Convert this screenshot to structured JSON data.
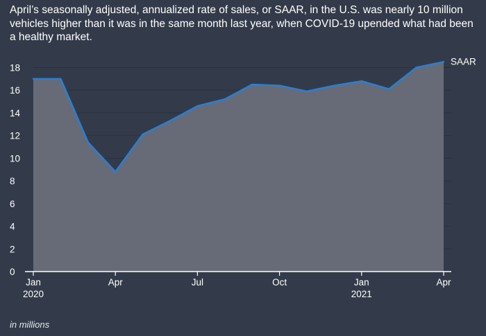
{
  "description": "April’s seasonally adjusted, annualized rate of sales, or SAAR, in the U.S. was nearly 10 million vehicles higher than it was in the same month last year, when COVID-19 upended what had been a healthy market.",
  "footnote": "in millions",
  "chart_data": {
    "type": "area",
    "title": "",
    "xlabel": "",
    "ylabel": "",
    "x": [
      "2020-01",
      "2020-02",
      "2020-03",
      "2020-04",
      "2020-05",
      "2020-06",
      "2020-07",
      "2020-08",
      "2020-09",
      "2020-10",
      "2020-11",
      "2020-12",
      "2021-01",
      "2021-02",
      "2021-03",
      "2021-04"
    ],
    "series": [
      {
        "name": "SAAR",
        "values": [
          17.0,
          17.0,
          11.4,
          8.8,
          12.1,
          13.3,
          14.6,
          15.2,
          16.5,
          16.4,
          15.9,
          16.4,
          16.8,
          16.1,
          18.0,
          18.5
        ]
      }
    ],
    "ylim": [
      0,
      18.7
    ],
    "yticks": [
      0,
      2,
      4,
      6,
      8,
      10,
      12,
      14,
      16,
      18
    ],
    "xticks": [
      {
        "index": 0,
        "label": "Jan",
        "sublabel": "2020"
      },
      {
        "index": 3,
        "label": "Apr",
        "sublabel": ""
      },
      {
        "index": 6,
        "label": "Jul",
        "sublabel": ""
      },
      {
        "index": 9,
        "label": "Oct",
        "sublabel": ""
      },
      {
        "index": 12,
        "label": "Jan",
        "sublabel": "2021"
      },
      {
        "index": 15,
        "label": "Apr",
        "sublabel": ""
      }
    ],
    "grid": true,
    "legend": "end-of-line label",
    "colors": {
      "background": "#333b4a",
      "area": "#666b77",
      "line": "#2a7fd4",
      "grid": "#2a313d",
      "axis": "#ffffff"
    }
  }
}
